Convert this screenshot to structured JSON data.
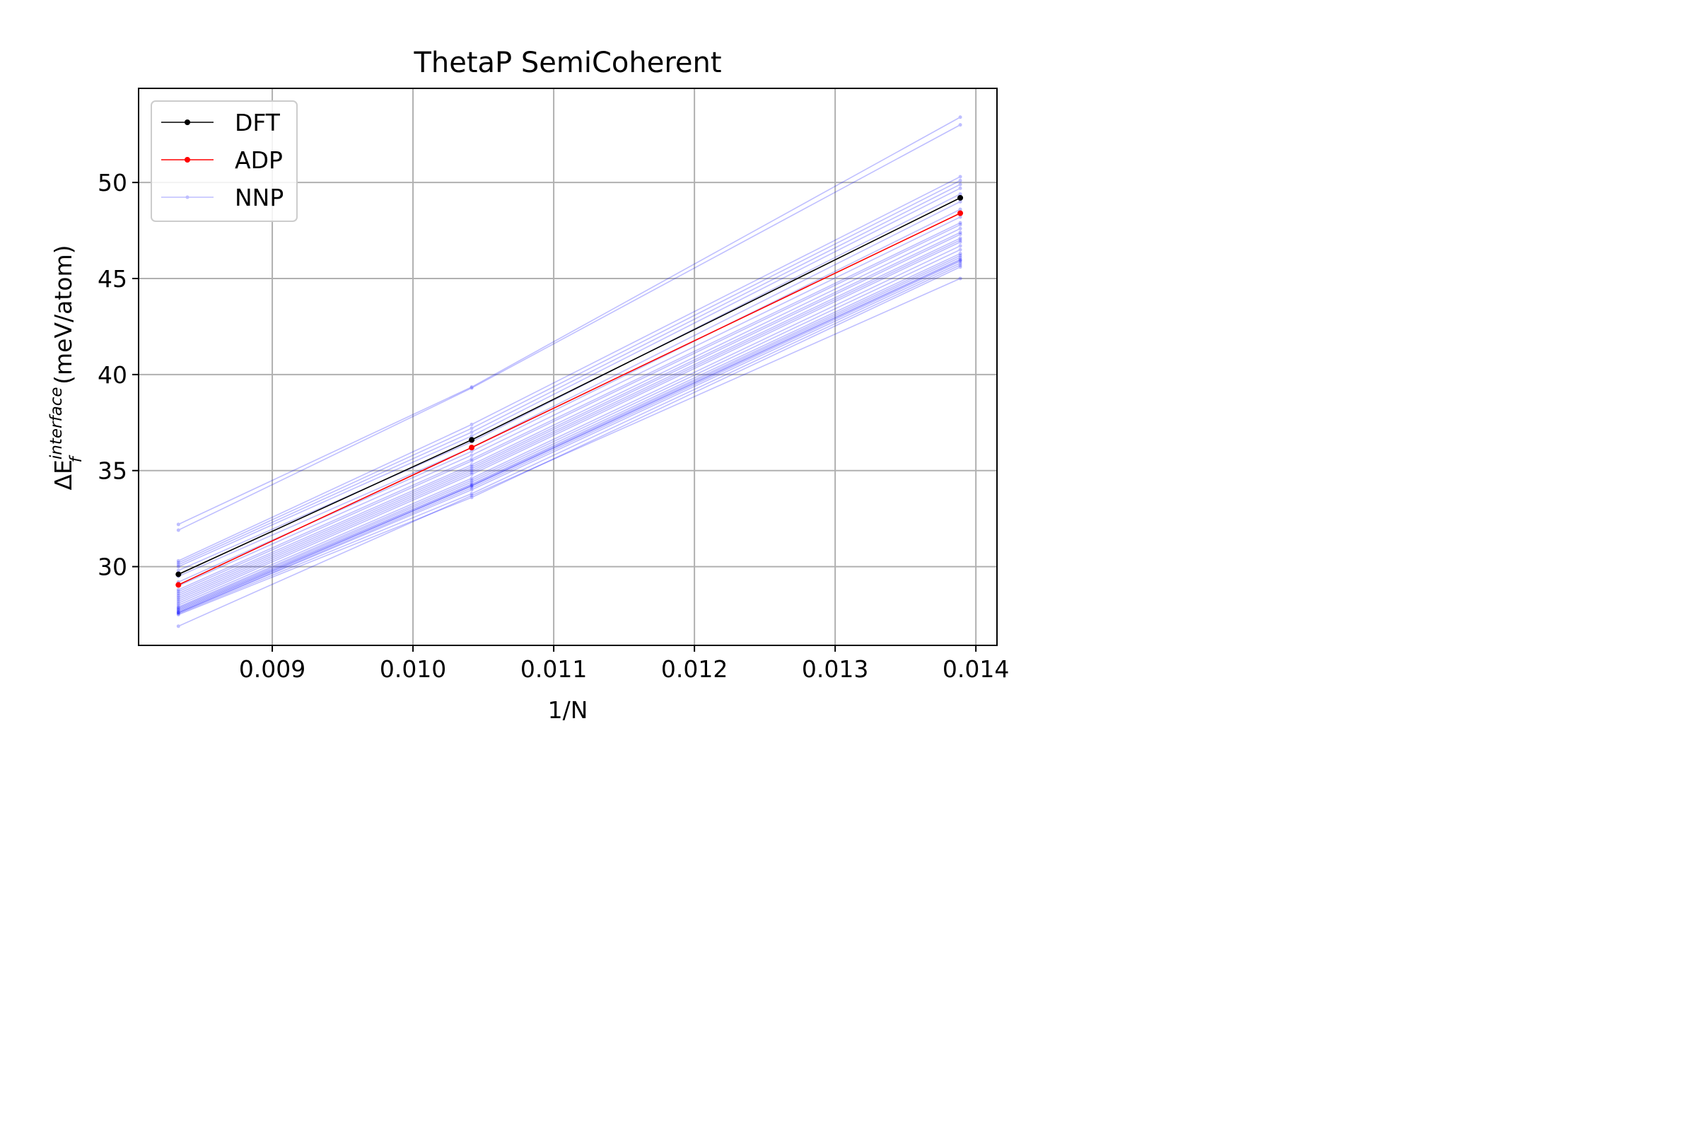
{
  "chart_data": {
    "type": "line",
    "title": "ThetaP SemiCoherent",
    "xlabel": "1/N",
    "ylabel": {
      "prefix": "ΔE",
      "subscript": "f",
      "superscript": "interface",
      "suffix": " (meV/atom)"
    },
    "xlim": [
      0.00805,
      0.01415
    ],
    "ylim": [
      25.9,
      54.9
    ],
    "xticks": [
      0.009,
      0.01,
      0.011,
      0.012,
      0.013,
      0.014
    ],
    "xtick_labels": [
      "0.009",
      "0.010",
      "0.011",
      "0.012",
      "0.013",
      "0.014"
    ],
    "yticks": [
      30,
      35,
      40,
      45,
      50
    ],
    "ytick_labels": [
      "30",
      "35",
      "40",
      "45",
      "50"
    ],
    "grid": true,
    "legend_position": "upper-left",
    "x": [
      0.008333,
      0.010417,
      0.013889
    ],
    "series": [
      {
        "name": "DFT",
        "color": "#000000",
        "opacity": 1.0,
        "values": [
          29.6,
          36.6,
          49.2
        ]
      },
      {
        "name": "ADP",
        "color": "#ff0000",
        "opacity": 1.0,
        "values": [
          29.05,
          36.2,
          48.4
        ]
      },
      {
        "name": "NNP",
        "color": "#0000ff",
        "opacity": 0.25,
        "values": [
          32.2,
          39.35,
          53.4
        ]
      },
      {
        "color": "#0000ff",
        "opacity": 0.25,
        "values": [
          31.9,
          39.3,
          53.0
        ]
      },
      {
        "color": "#0000ff",
        "opacity": 0.25,
        "values": [
          30.3,
          37.4,
          50.3
        ]
      },
      {
        "color": "#0000ff",
        "opacity": 0.25,
        "values": [
          30.2,
          37.2,
          50.1
        ]
      },
      {
        "color": "#0000ff",
        "opacity": 0.25,
        "values": [
          30.1,
          37.0,
          49.9
        ]
      },
      {
        "color": "#0000ff",
        "opacity": 0.25,
        "values": [
          30.0,
          36.8,
          49.7
        ]
      },
      {
        "color": "#0000ff",
        "opacity": 0.25,
        "values": [
          29.8,
          36.5,
          49.4
        ]
      },
      {
        "color": "#0000ff",
        "opacity": 0.25,
        "values": [
          29.5,
          36.2,
          49.0
        ]
      },
      {
        "color": "#0000ff",
        "opacity": 0.25,
        "values": [
          29.2,
          36.0,
          48.6
        ]
      },
      {
        "color": "#0000ff",
        "opacity": 0.25,
        "values": [
          29.0,
          35.8,
          48.2
        ]
      },
      {
        "color": "#0000ff",
        "opacity": 0.25,
        "values": [
          28.8,
          35.6,
          47.9
        ]
      },
      {
        "color": "#0000ff",
        "opacity": 0.25,
        "values": [
          28.7,
          35.5,
          47.8
        ]
      },
      {
        "color": "#0000ff",
        "opacity": 0.25,
        "values": [
          28.6,
          35.3,
          47.6
        ]
      },
      {
        "color": "#0000ff",
        "opacity": 0.25,
        "values": [
          28.5,
          35.2,
          47.4
        ]
      },
      {
        "color": "#0000ff",
        "opacity": 0.25,
        "values": [
          28.4,
          35.1,
          47.3
        ]
      },
      {
        "color": "#0000ff",
        "opacity": 0.25,
        "values": [
          28.3,
          35.0,
          47.1
        ]
      },
      {
        "color": "#0000ff",
        "opacity": 0.25,
        "values": [
          28.2,
          34.9,
          47.0
        ]
      },
      {
        "color": "#0000ff",
        "opacity": 0.25,
        "values": [
          28.1,
          34.8,
          46.9
        ]
      },
      {
        "color": "#0000ff",
        "opacity": 0.25,
        "values": [
          28.0,
          34.6,
          46.7
        ]
      },
      {
        "color": "#0000ff",
        "opacity": 0.25,
        "values": [
          27.9,
          34.5,
          46.5
        ]
      },
      {
        "color": "#0000ff",
        "opacity": 0.25,
        "values": [
          27.85,
          34.4,
          46.3
        ]
      },
      {
        "color": "#0000ff",
        "opacity": 0.25,
        "values": [
          27.8,
          34.3,
          46.2
        ]
      },
      {
        "color": "#0000ff",
        "opacity": 0.25,
        "values": [
          27.75,
          34.25,
          46.1
        ]
      },
      {
        "color": "#0000ff",
        "opacity": 0.25,
        "values": [
          27.7,
          34.2,
          46.0
        ]
      },
      {
        "color": "#0000ff",
        "opacity": 0.25,
        "values": [
          27.65,
          34.2,
          45.95
        ]
      },
      {
        "color": "#0000ff",
        "opacity": 0.25,
        "values": [
          27.6,
          34.1,
          45.9
        ]
      },
      {
        "color": "#0000ff",
        "opacity": 0.25,
        "values": [
          27.6,
          34.0,
          45.8
        ]
      },
      {
        "color": "#0000ff",
        "opacity": 0.25,
        "values": [
          27.55,
          33.8,
          45.7
        ]
      },
      {
        "color": "#0000ff",
        "opacity": 0.25,
        "values": [
          27.5,
          33.6,
          45.6
        ]
      },
      {
        "color": "#0000ff",
        "opacity": 0.25,
        "values": [
          26.9,
          33.7,
          45.0
        ]
      }
    ]
  }
}
